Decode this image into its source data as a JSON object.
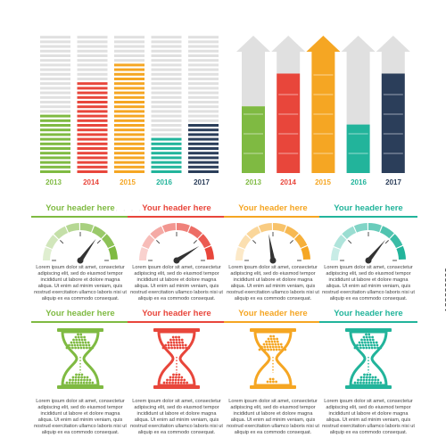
{
  "colors": {
    "green": "#7fba42",
    "red": "#e8463b",
    "orange": "#f5a623",
    "teal": "#22b49b",
    "navy": "#2b3e5a",
    "gray": "#e0e0e0"
  },
  "chart_data": [
    {
      "type": "bar",
      "categories": [
        "2013",
        "2014",
        "2015",
        "2016",
        "2017"
      ],
      "values": [
        42,
        66,
        80,
        28,
        38
      ],
      "ylim": [
        0,
        100
      ],
      "grid": false
    },
    {
      "type": "bar",
      "categories": [
        "2013",
        "2014",
        "2015",
        "2016",
        "2017"
      ],
      "values": [
        55,
        82,
        100,
        40,
        82
      ],
      "ylim": [
        0,
        100
      ],
      "grid": false
    }
  ],
  "cards": [
    {
      "header": "Your header here",
      "color": "green",
      "gauge_level": 0.7,
      "sand": "bottom"
    },
    {
      "header": "Your header here",
      "color": "red",
      "gauge_level": 0.82,
      "sand": "split"
    },
    {
      "header": "Your header here",
      "color": "orange",
      "gauge_level": 0.45,
      "sand": "top"
    },
    {
      "header": "Your header here",
      "color": "teal",
      "gauge_level": 0.72,
      "sand": "bottom"
    }
  ],
  "headers": {
    "g1": "Your header here",
    "g2": "Your header here",
    "g3": "Your header here",
    "g4": "Your header here",
    "h1": "Your header here",
    "h2": "Your header here",
    "h3": "Your header here",
    "h4": "Your header here"
  },
  "body_text": "Lorem ipsum dolor sit amet, consectetur\nadipiscing elit, sed do eiusmod tempor\nincididunt ut labore et dolore magna\naliqua. Ut enim ad minim veniam, quis\nnostrud exercitation ullamco laboris nisi ut\naliquip ex ea commodo consequat.",
  "stock_id": "138232302"
}
